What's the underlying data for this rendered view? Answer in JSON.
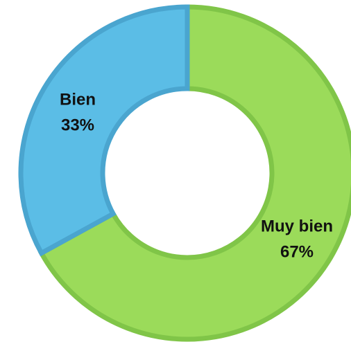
{
  "chart_data": {
    "type": "donut",
    "categories": [
      "Muy bien",
      "Bien"
    ],
    "values": [
      67,
      33
    ],
    "value_labels": [
      "67%",
      "33%"
    ],
    "colors": [
      "#9bdb5a",
      "#5bbde6"
    ],
    "stroke_colors": [
      "#80c548",
      "#4aa5cf"
    ]
  }
}
